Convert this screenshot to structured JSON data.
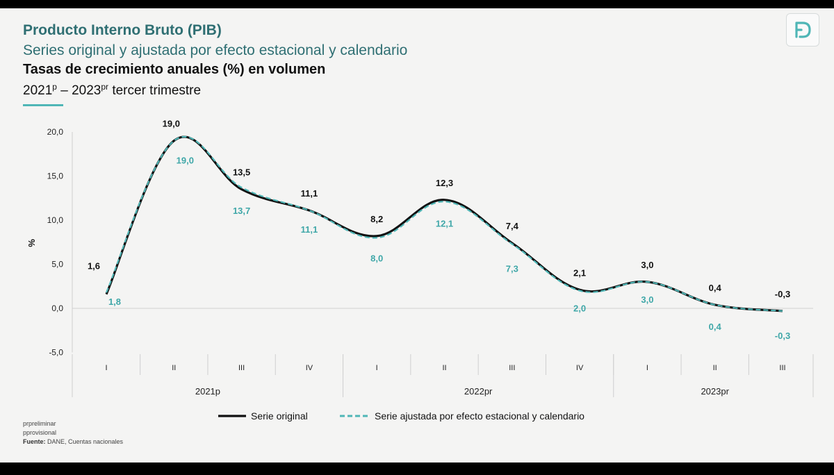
{
  "header": {
    "title": "Producto Interno Bruto (PIB)",
    "subtitle": "Series original y ajustada por efecto estacional y calendario",
    "heading": "Tasas de crecimiento anuales (%) en volumen",
    "period_start": "2021",
    "period_start_sup": "p",
    "period_dash": " – 2023",
    "period_end_sup": "pr",
    "period_rest": " tercer trimestre"
  },
  "footnotes": {
    "preliminar": "prpreliminar",
    "provisional": "pprovisional",
    "fuente_label": "Fuente:",
    "fuente_text": " DANE, Cuentas nacionales"
  },
  "chart_data": {
    "type": "line",
    "ylabel": "%",
    "ylim": [
      -5,
      20
    ],
    "yticks": [
      -5,
      0,
      5,
      10,
      15,
      20
    ],
    "ytick_labels": [
      "-5,0",
      "0,0",
      "5,0",
      "10,0",
      "15,0",
      "20,0"
    ],
    "categories": [
      "I",
      "II",
      "III",
      "IV",
      "I",
      "II",
      "III",
      "IV",
      "I",
      "II",
      "III"
    ],
    "groups": [
      {
        "label": "2021p",
        "count": 4
      },
      {
        "label": "2022pr",
        "count": 4
      },
      {
        "label": "2023pr",
        "count": 3
      }
    ],
    "series": [
      {
        "name": "Serie original",
        "color": "#111111",
        "values": [
          1.6,
          19.0,
          13.5,
          11.1,
          8.2,
          12.3,
          7.4,
          2.1,
          3.0,
          0.4,
          -0.3
        ],
        "labels": [
          "1,6",
          "19,0",
          "13,5",
          "11,1",
          "8,2",
          "12,3",
          "7,4",
          "2,1",
          "3,0",
          "0,4",
          "-0,3"
        ]
      },
      {
        "name": "Serie ajustada por efecto estacional y calendario",
        "color": "#4fb6b6",
        "dashed": true,
        "values": [
          1.8,
          19.0,
          13.7,
          11.1,
          8.0,
          12.1,
          7.3,
          2.0,
          3.0,
          0.4,
          -0.3
        ],
        "labels": [
          "1,8",
          "19,0",
          "13,7",
          "11,1",
          "8,0",
          "12,1",
          "7,3",
          "2,0",
          "3,0",
          "0,4",
          "-0,3"
        ]
      }
    ],
    "legend_position": "bottom-center"
  }
}
